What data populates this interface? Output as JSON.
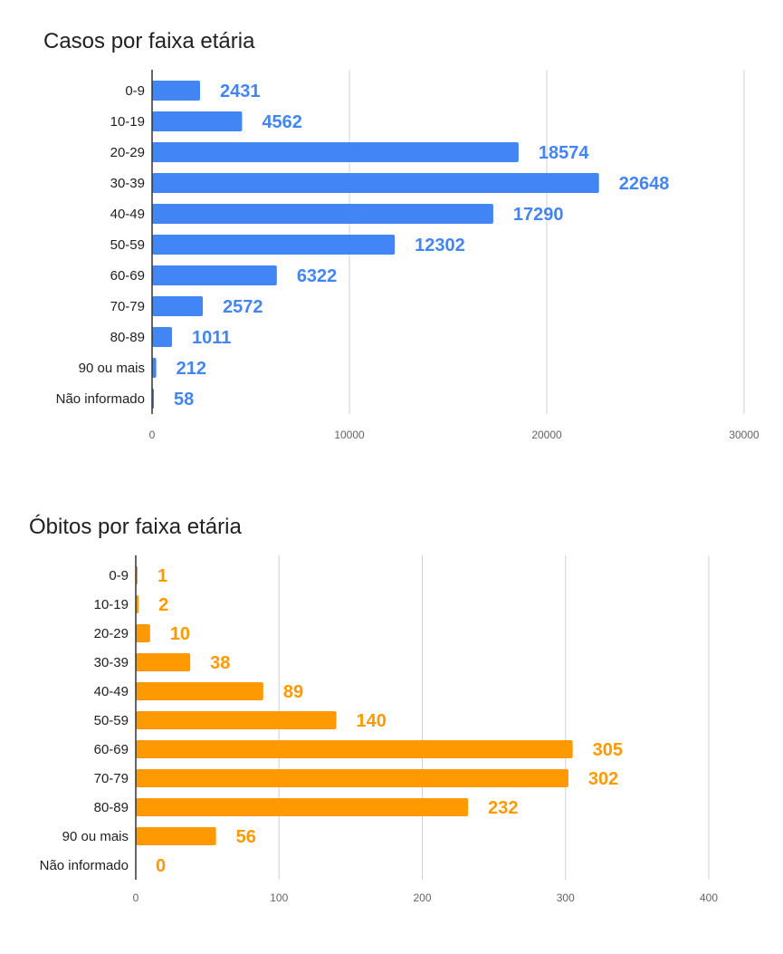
{
  "chart_data": [
    {
      "type": "bar",
      "orientation": "horizontal",
      "title": "Casos por faixa etária",
      "categories": [
        "0-9",
        "10-19",
        "20-29",
        "30-39",
        "40-49",
        "50-59",
        "60-69",
        "70-79",
        "80-89",
        "90 ou mais",
        "Não informado"
      ],
      "values": [
        2431,
        4562,
        18574,
        22648,
        17290,
        12302,
        6322,
        2572,
        1011,
        212,
        58
      ],
      "xticks": [
        0,
        10000,
        20000,
        30000
      ],
      "xlim": [
        0,
        30000
      ],
      "color": "#4285f4",
      "grid": true,
      "legend": "none"
    },
    {
      "type": "bar",
      "orientation": "horizontal",
      "title": "Óbitos por faixa etária",
      "categories": [
        "0-9",
        "10-19",
        "20-29",
        "30-39",
        "40-49",
        "50-59",
        "60-69",
        "70-79",
        "80-89",
        "90 ou mais",
        "Não informado"
      ],
      "values": [
        1,
        2,
        10,
        38,
        89,
        140,
        305,
        302,
        232,
        56,
        0
      ],
      "xticks": [
        0,
        100,
        200,
        300,
        400
      ],
      "xlim": [
        0,
        400
      ],
      "color": "#ff9900",
      "grid": true,
      "legend": "none"
    }
  ]
}
